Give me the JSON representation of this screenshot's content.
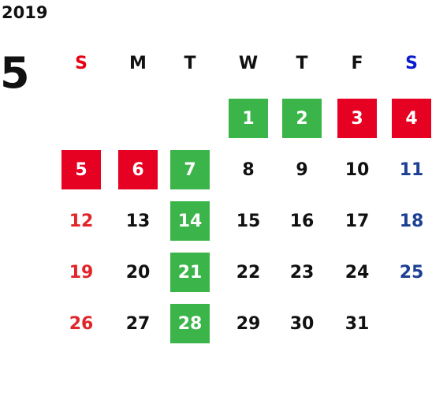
{
  "year": "2019",
  "month": "5",
  "weekdays": [
    {
      "text": "S",
      "color": "#e60012"
    },
    {
      "text": "M",
      "color": "#111111"
    },
    {
      "text": "T",
      "color": "#111111"
    },
    {
      "text": "W",
      "color": "#111111"
    },
    {
      "text": "T",
      "color": "#111111"
    },
    {
      "text": "F",
      "color": "#111111"
    },
    {
      "text": "S",
      "color": "#0a1bd0"
    }
  ],
  "day_colors": [
    "#e0262a",
    "#111111",
    "#111111",
    "#111111",
    "#111111",
    "#111111",
    "#1d3f94"
  ],
  "weeks": [
    [
      null,
      null,
      null,
      {
        "text": "1",
        "fill": "#3bb54a"
      },
      {
        "text": "2",
        "fill": "#3bb54a"
      },
      {
        "text": "3",
        "fill": "#e60022"
      },
      {
        "text": "4",
        "fill": "#e60022"
      }
    ],
    [
      {
        "text": "5",
        "fill": "#e60022"
      },
      {
        "text": "6",
        "fill": "#e60022"
      },
      {
        "text": "7",
        "fill": "#3bb54a"
      },
      {
        "text": "8"
      },
      {
        "text": "9"
      },
      {
        "text": "10"
      },
      {
        "text": "11"
      }
    ],
    [
      {
        "text": "12"
      },
      {
        "text": "13"
      },
      {
        "text": "14",
        "fill": "#3bb54a"
      },
      {
        "text": "15"
      },
      {
        "text": "16"
      },
      {
        "text": "17"
      },
      {
        "text": "18"
      }
    ],
    [
      {
        "text": "19"
      },
      {
        "text": "20"
      },
      {
        "text": "21",
        "fill": "#3bb54a"
      },
      {
        "text": "22"
      },
      {
        "text": "23"
      },
      {
        "text": "24"
      },
      {
        "text": "25"
      }
    ],
    [
      {
        "text": "26"
      },
      {
        "text": "27"
      },
      {
        "text": "28",
        "fill": "#3bb54a"
      },
      {
        "text": "29"
      },
      {
        "text": "30"
      },
      {
        "text": "31"
      },
      null
    ]
  ]
}
